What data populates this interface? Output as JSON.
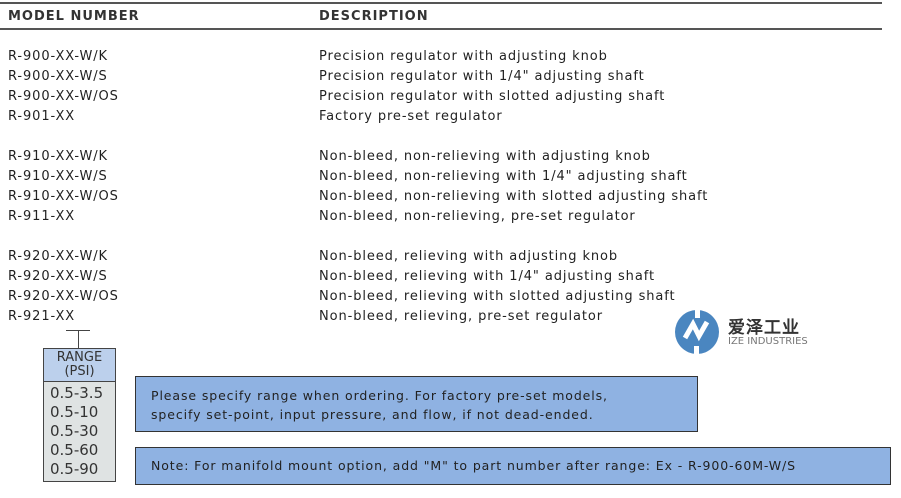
{
  "header": {
    "model_number": "MODEL NUMBER",
    "description": "DESCRIPTION"
  },
  "rows": [
    {
      "model": "R-900-XX-W/K",
      "description": "Precision regulator with adjusting knob"
    },
    {
      "model": "R-900-XX-W/S",
      "description": "Precision regulator with 1/4\" adjusting shaft"
    },
    {
      "model": "R-900-XX-W/OS",
      "description": "Precision regulator with slotted adjusting shaft"
    },
    {
      "model": "R-901-XX",
      "description": "Factory pre-set regulator"
    },
    {
      "model": "R-910-XX-W/K",
      "description": "Non-bleed, non-relieving with adjusting knob"
    },
    {
      "model": "R-910-XX-W/S",
      "description": "Non-bleed, non-relieving with 1/4\" adjusting shaft"
    },
    {
      "model": "R-910-XX-W/OS",
      "description": "Non-bleed, non-relieving with slotted adjusting shaft"
    },
    {
      "model": "R-911-XX",
      "description": "Non-bleed, non-relieving, pre-set regulator"
    },
    {
      "model": "R-920-XX-W/K",
      "description": "Non-bleed, relieving with adjusting knob"
    },
    {
      "model": "R-920-XX-W/S",
      "description": "Non-bleed, relieving with 1/4\" adjusting shaft"
    },
    {
      "model": "R-920-XX-W/OS",
      "description": "Non-bleed, relieving with slotted adjusting shaft"
    },
    {
      "model": "R-921-XX",
      "description": "Non-bleed, relieving, pre-set regulator"
    }
  ],
  "range": {
    "title_line1": "RANGE",
    "title_line2": "(PSI)",
    "values": [
      "0.5-3.5",
      "0.5-10",
      "0.5-30",
      "0.5-60",
      "0.5-90"
    ]
  },
  "notes": {
    "specify_line1": "Please specify range when ordering. For factory pre-set models,",
    "specify_line2": "specify set-point, input pressure, and flow, if not dead-ended.",
    "manifold": "Note: For manifold mount option, add \"M\" to part number after range: Ex - R-900-60M-W/S"
  },
  "logo": {
    "chinese": "爱泽工业",
    "english": "IZE INDUSTRIES",
    "color": "#4a86c0"
  },
  "colors": {
    "note_bg": "#8fb2e2",
    "range_header_bg": "#bcd0ec"
  }
}
